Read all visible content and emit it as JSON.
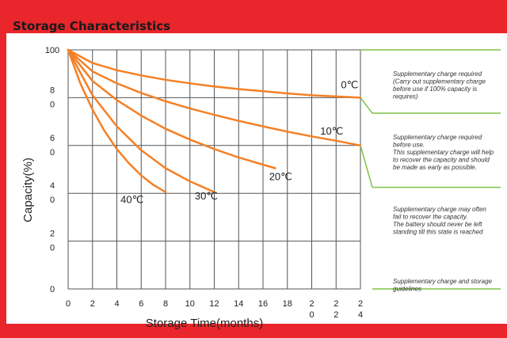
{
  "title": "Storage Characteristics",
  "chart_data": {
    "type": "line",
    "xlabel": "Storage Time(months)",
    "ylabel": "Capacity(%)",
    "xlim": [
      0,
      24
    ],
    "ylim": [
      0,
      100
    ],
    "x_ticks": [
      "0",
      "2",
      "4",
      "6",
      "8",
      "10",
      "12",
      "14",
      "16",
      "18",
      "2\n0",
      "2\n2",
      "2\n4"
    ],
    "y_ticks": [
      "0",
      "2\n0",
      "4\n0",
      "6\n0",
      "8\n0",
      "100"
    ],
    "grid": true,
    "series": [
      {
        "name": "0℃",
        "x": [
          0,
          2,
          4,
          6,
          8,
          10,
          12,
          14,
          16,
          18,
          20,
          22,
          24
        ],
        "y": [
          100,
          94.5,
          91.5,
          89.3,
          87.5,
          86,
          84.7,
          83.6,
          82.7,
          81.8,
          81,
          80.5,
          80
        ]
      },
      {
        "name": "10℃",
        "x": [
          0,
          2,
          4,
          6,
          8,
          10,
          12,
          14,
          16,
          18,
          20,
          22,
          24
        ],
        "y": [
          100,
          91,
          86,
          82,
          78.5,
          75.5,
          72.8,
          70.3,
          68,
          65.8,
          63.8,
          62,
          60
        ]
      },
      {
        "name": "20℃",
        "x": [
          0,
          2,
          4,
          6,
          8,
          10,
          12,
          14,
          16,
          17
        ],
        "y": [
          100,
          87,
          79,
          72.5,
          67,
          62.5,
          58.5,
          55,
          52,
          50.5
        ]
      },
      {
        "name": "30℃",
        "x": [
          0,
          2,
          4,
          6,
          8,
          10,
          12
        ],
        "y": [
          100,
          81,
          68,
          58,
          50.5,
          45,
          40.5
        ]
      },
      {
        "name": "40℃",
        "x": [
          0,
          1,
          2,
          3,
          4,
          5,
          6,
          7,
          8
        ],
        "y": [
          100,
          86,
          75,
          66,
          58.5,
          52.5,
          47.5,
          43.5,
          40.5
        ]
      }
    ],
    "curve_labels": [
      {
        "text": "0℃",
        "x": 22.4,
        "y": 84
      },
      {
        "text": "10℃",
        "x": 20.7,
        "y": 64.5
      },
      {
        "text": "20℃",
        "x": 16.5,
        "y": 45.5
      },
      {
        "text": "30℃",
        "x": 10.4,
        "y": 37.5
      },
      {
        "text": "40℃",
        "x": 4.3,
        "y": 36
      }
    ],
    "annotations": [
      {
        "lines": [
          "Supplementary charge required",
          "(Carry out supplementary charge",
          "before use if 100% capacity is",
          "requires)"
        ]
      },
      {
        "lines": [
          "Supplementary charge required",
          "before use.",
          "This supplementary charge will help",
          "to recover the capacity and should",
          "be made  as early as possible."
        ]
      },
      {
        "lines": [
          "Supplementary charge may often",
          "fail to recover the capacity.",
          "The battery should never be left",
          "standing till this state is reached"
        ]
      },
      {
        "lines": [
          "Supplementary charge and storage",
          "guidelines"
        ]
      }
    ],
    "colors": {
      "curve": "#f58025",
      "grid": "#555555",
      "bracket": "#7dc243",
      "frame": "#e8262b"
    }
  }
}
